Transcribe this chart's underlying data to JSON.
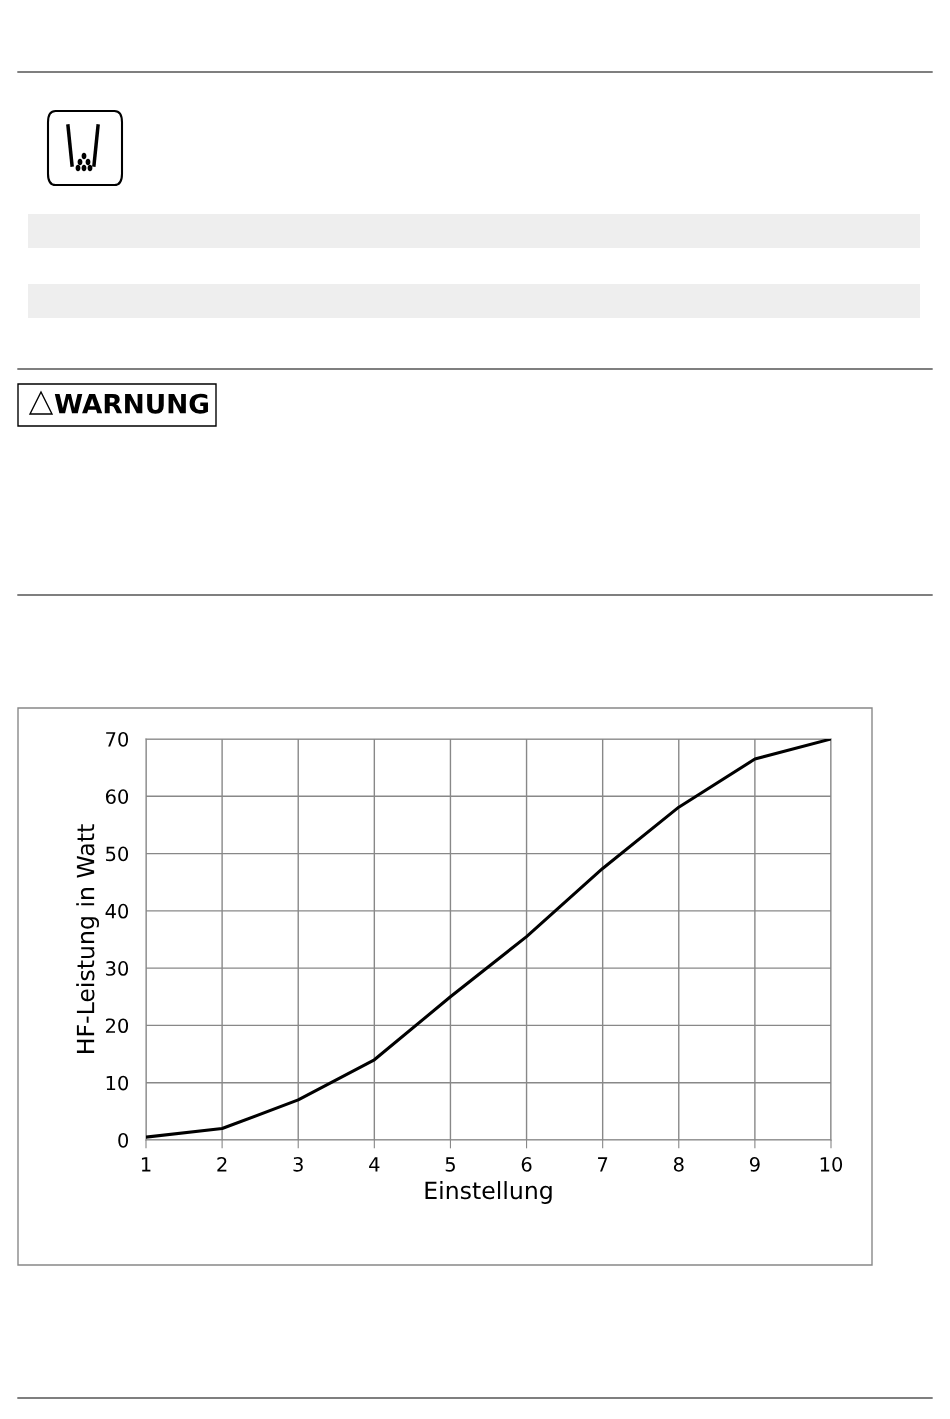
{
  "chart_data": {
    "type": "line",
    "xlabel": "Einstellung",
    "ylabel": "HF-Leistung in Watt",
    "annotations": [
      "WARNUNG"
    ],
    "x": [
      1,
      2,
      3,
      4,
      5,
      6,
      7,
      8,
      9,
      10
    ],
    "series": [
      {
        "color": "#000000",
        "values": [
          0.5,
          2,
          7,
          14,
          25,
          35.5,
          47.4,
          58.1,
          66.5,
          70
        ]
      }
    ],
    "xlim": [
      1,
      10
    ],
    "xticks": [
      1,
      2,
      3,
      4,
      5,
      6,
      7,
      8,
      9,
      10
    ],
    "ylim": [
      0,
      70
    ],
    "yticks": [
      0,
      10,
      20,
      30,
      40,
      50,
      60,
      70
    ],
    "grid": true,
    "legend": false,
    "marker": "none",
    "line_style": "solid"
  }
}
